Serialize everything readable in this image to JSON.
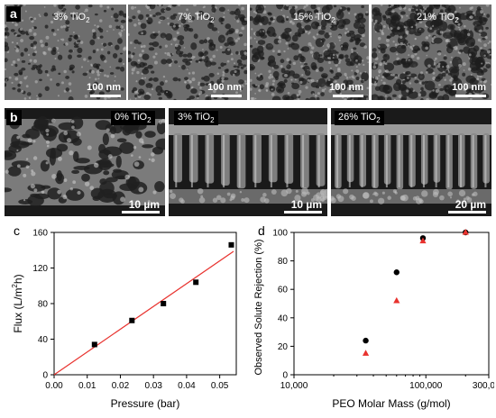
{
  "panel_a": {
    "letter": "a",
    "images": [
      {
        "label": "3% TiO",
        "sub": "2",
        "scale": "100 nm"
      },
      {
        "label": "7% TiO",
        "sub": "2",
        "scale": "100 nm"
      },
      {
        "label": "15% TiO",
        "sub": "2",
        "scale": "100 nm"
      },
      {
        "label": "21% TiO",
        "sub": "2",
        "scale": "100 nm"
      }
    ]
  },
  "panel_b": {
    "letter": "b",
    "images": [
      {
        "label": "0% TiO",
        "sub": "2",
        "scale": "10 µm"
      },
      {
        "label": "3% TiO",
        "sub": "2",
        "scale": "10 µm"
      },
      {
        "label": "26% TiO",
        "sub": "2",
        "scale": "20 µm"
      }
    ]
  },
  "chart_data": [
    {
      "type": "scatter",
      "letter": "c",
      "xlabel": "Pressure (bar)",
      "ylabel_parts": [
        "Flux (L/m",
        "2",
        "h)"
      ],
      "xlim": [
        0.0,
        0.055
      ],
      "ylim": [
        0,
        160
      ],
      "xticks": [
        "0.00",
        "0.01",
        "0.02",
        "0.03",
        "0.04",
        "0.05"
      ],
      "yticks": [
        "0",
        "40",
        "80",
        "120",
        "160"
      ],
      "points": [
        {
          "x": 0.0122,
          "y": 34
        },
        {
          "x": 0.0235,
          "y": 61
        },
        {
          "x": 0.033,
          "y": 80
        },
        {
          "x": 0.0428,
          "y": 104
        },
        {
          "x": 0.0535,
          "y": 146
        }
      ],
      "fit_line": {
        "slope": 2560,
        "intercept": 0,
        "color": "#e8322e"
      },
      "marker_color": "#000000"
    },
    {
      "type": "scatter",
      "letter": "d",
      "xlabel": "PEO Molar Mass (g/mol)",
      "ylabel": "Observed Solute Rejection (%)",
      "xscale": "log",
      "xlim": [
        10000,
        300000
      ],
      "ylim": [
        0,
        100
      ],
      "xticks": [
        {
          "v": 10000,
          "label": "10,000"
        },
        {
          "v": 100000,
          "label": "100,000"
        },
        {
          "v": 300000,
          "label": "300,000"
        }
      ],
      "yticks": [
        "0",
        "20",
        "40",
        "60",
        "80",
        "100"
      ],
      "series": [
        {
          "marker": "circle",
          "color": "#000000",
          "points": [
            {
              "x": 35000,
              "y": 24
            },
            {
              "x": 60000,
              "y": 72
            },
            {
              "x": 95000,
              "y": 96
            },
            {
              "x": 200000,
              "y": 100
            }
          ]
        },
        {
          "marker": "triangle",
          "color": "#e8322e",
          "points": [
            {
              "x": 35000,
              "y": 15
            },
            {
              "x": 60000,
              "y": 52
            },
            {
              "x": 95000,
              "y": 94
            },
            {
              "x": 200000,
              "y": 100
            }
          ]
        }
      ]
    }
  ]
}
